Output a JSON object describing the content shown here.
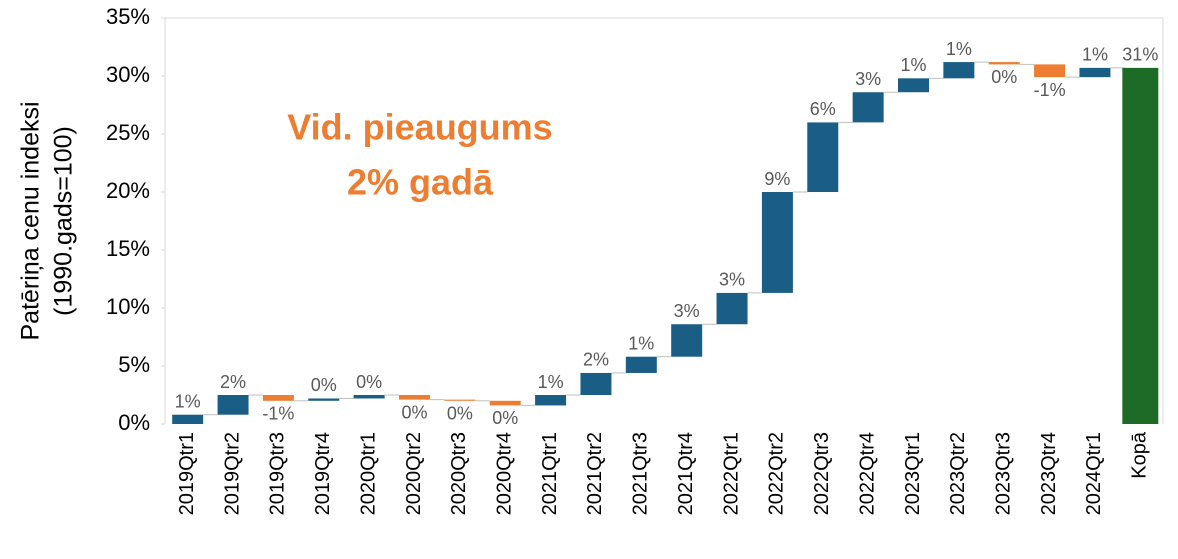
{
  "chart_data": {
    "type": "waterfall",
    "y_label": [
      "Patēriņa cenu indeksi",
      "(1990.gads=100)"
    ],
    "annotation": [
      "Vid. pieaugums",
      "2% gadā"
    ],
    "annotation_color": "#ed7d31",
    "categories": [
      "2019Qtr1",
      "2019Qtr2",
      "2019Qtr3",
      "2019Qtr4",
      "2020Qtr1",
      "2020Qtr2",
      "2020Qtr3",
      "2020Qtr4",
      "2021Qtr1",
      "2021Qtr2",
      "2021Qtr3",
      "2021Qtr4",
      "2022Qtr1",
      "2022Qtr2",
      "2022Qtr3",
      "2022Qtr4",
      "2023Qtr1",
      "2023Qtr2",
      "2023Qtr3",
      "2023Qtr4",
      "2024Qtr1"
    ],
    "values": [
      0.8,
      1.7,
      -0.5,
      0.2,
      0.3,
      -0.4,
      -0.1,
      -0.4,
      0.9,
      1.9,
      1.4,
      2.8,
      2.7,
      8.7,
      6.0,
      2.6,
      1.2,
      1.4,
      -0.2,
      -1.1,
      0.8
    ],
    "value_labels": [
      "1%",
      "2%",
      "-1%",
      "0%",
      "0%",
      "0%",
      "0%",
      "0%",
      "1%",
      "2%",
      "1%",
      "3%",
      "3%",
      "9%",
      "6%",
      "3%",
      "1%",
      "1%",
      "0%",
      "-1%",
      "1%"
    ],
    "increase_color": "#1b5e85",
    "decrease_color": "#ed7d31",
    "total": {
      "category": "Kopā",
      "value": 30.7,
      "value_label": "31%",
      "color": "#1e6b28"
    },
    "ylim": [
      0,
      35
    ],
    "yticks": [
      {
        "value": 0,
        "label": "0%"
      },
      {
        "value": 5,
        "label": "5%"
      },
      {
        "value": 10,
        "label": "10%"
      },
      {
        "value": 15,
        "label": "15%"
      },
      {
        "value": 20,
        "label": "20%"
      },
      {
        "value": 25,
        "label": "25%"
      },
      {
        "value": 30,
        "label": "30%"
      },
      {
        "value": 35,
        "label": "35%"
      }
    ],
    "grid": false
  }
}
